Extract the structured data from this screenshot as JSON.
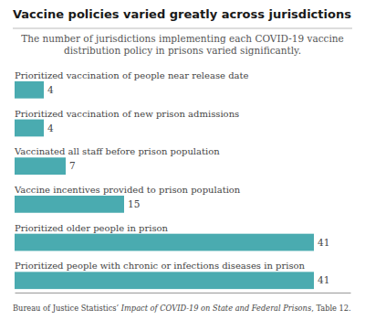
{
  "chart_data": {
    "type": "bar",
    "orientation": "horizontal",
    "title": "Vaccine policies varied greatly across jurisdictions",
    "subtitle": [
      "The number of jurisdictions implementing each COVID-19 vaccine",
      "distribution policy in prisons varied significantly."
    ],
    "categories": [
      "Prioritized vaccination of people near release date",
      "Prioritized vaccination of new prison admissions",
      "Vaccinated all staff before prison population",
      "Vaccine incentives provided to prison population",
      "Prioritized older people in prison",
      "Prioritized people with chronic or infections diseases in prison"
    ],
    "values": [
      4,
      4,
      7,
      15,
      41,
      41
    ],
    "color": "#4aabb0",
    "xlim": [
      0,
      46
    ],
    "data_labels": true,
    "tick_labels": "y",
    "grid": false,
    "annotations": [
      "Bureau of Justice Statistics’ ",
      "Impact of COVID-19 on State and Federal Prisons",
      ", Table 12."
    ]
  }
}
